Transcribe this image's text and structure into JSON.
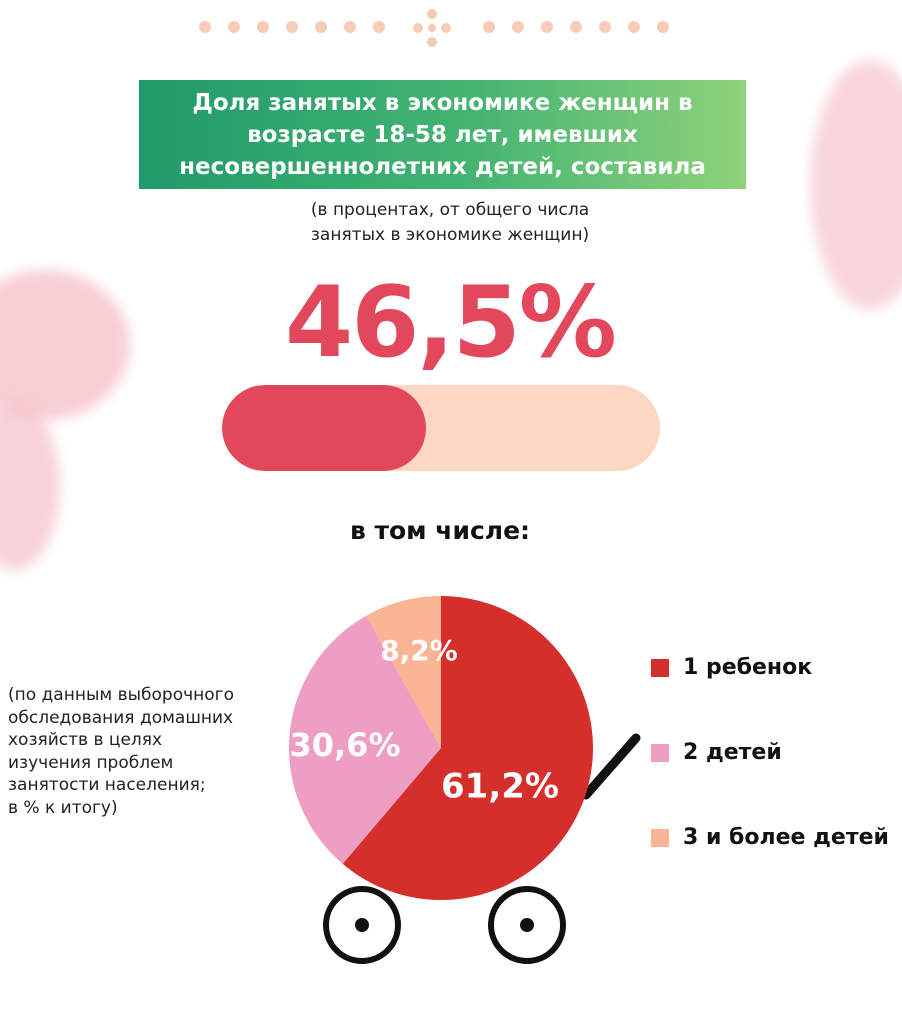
{
  "title": "Доля занятых в экономике женщин в\nвозрасте 18-58 лет, имевших\nнесовершеннолетних детей, составила",
  "subtitle": "(в процентах, от общего числа\nзанятых в экономике женщин)",
  "headline_value": "46,5%",
  "progress": {
    "value": 46.5,
    "max": 100
  },
  "section_heading": "в том числе:",
  "footnote": "(по данным выборочного\nобследования домашних\nхозяйств в целях\nизучения проблем\nзанятости населения;\nв % к итогу)",
  "colors": {
    "accent": "#e2475b",
    "track": "#fdd7c3",
    "slice_1": "#d42f2a",
    "slice_2": "#ee9ec3",
    "slice_3": "#f8b493"
  },
  "chart_data": {
    "type": "pie",
    "categories": [
      "1 ребенок",
      "2 детей",
      "3 и более детей"
    ],
    "values": [
      61.2,
      30.6,
      8.2
    ],
    "value_labels": [
      "61,2%",
      "30,6%",
      "8,2%"
    ],
    "colors": [
      "#d42f2a",
      "#ee9ec3",
      "#f8b493"
    ],
    "legend_position": "right"
  }
}
